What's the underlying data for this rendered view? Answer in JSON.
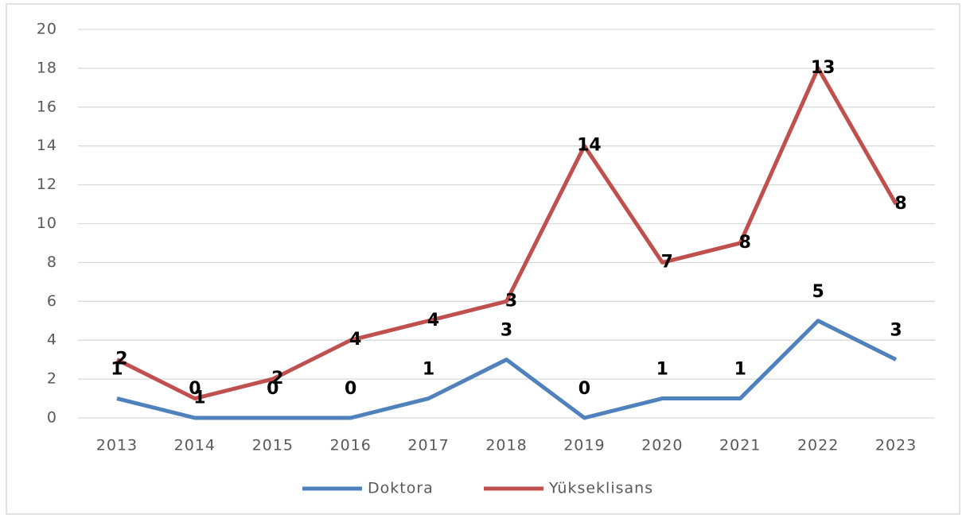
{
  "chart_data": {
    "type": "line",
    "stacked": true,
    "categories": [
      "2013",
      "2014",
      "2015",
      "2016",
      "2017",
      "2018",
      "2019",
      "2020",
      "2021",
      "2022",
      "2023"
    ],
    "series": [
      {
        "name": "Doktora",
        "color": "#4f81bd",
        "values": [
          1,
          0,
          0,
          0,
          1,
          3,
          0,
          1,
          1,
          5,
          3
        ]
      },
      {
        "name": "Yükseklisans",
        "color": "#c0504d",
        "values": [
          2,
          1,
          2,
          4,
          4,
          3,
          14,
          7,
          8,
          13,
          8
        ]
      }
    ],
    "ylim": [
      0,
      20
    ],
    "yticks": [
      0,
      2,
      4,
      6,
      8,
      10,
      12,
      14,
      16,
      18,
      20
    ],
    "grid": true,
    "legend": "bottom"
  }
}
